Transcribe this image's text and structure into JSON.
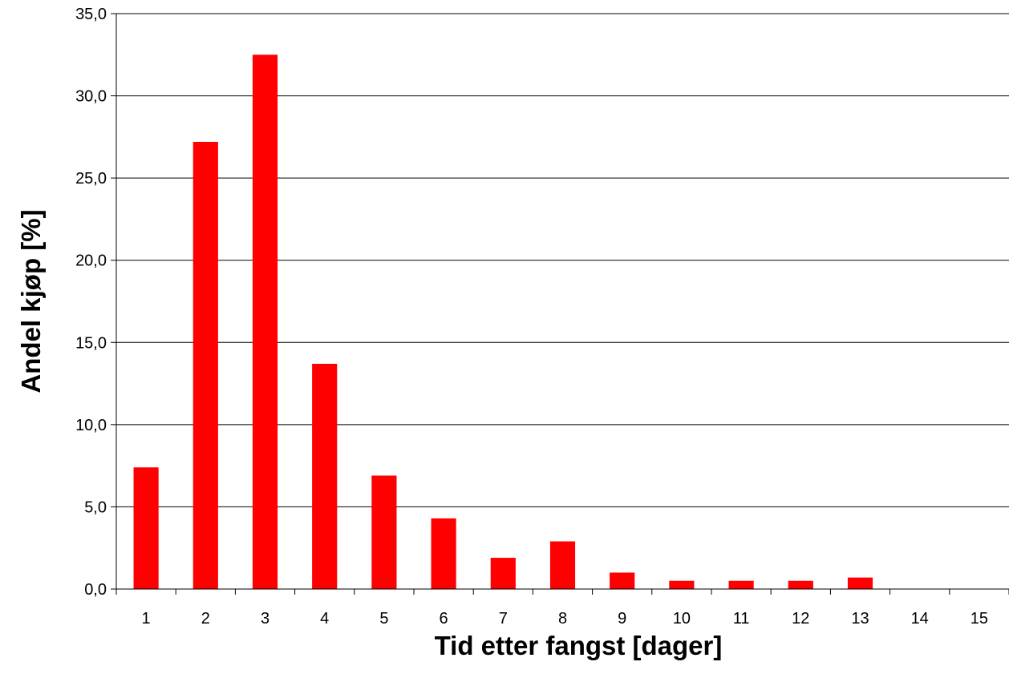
{
  "chart_data": {
    "type": "bar",
    "title": "",
    "xlabel": "Tid etter fangst [dager]",
    "ylabel": "Andel kjøp [%]",
    "categories": [
      "1",
      "2",
      "3",
      "4",
      "5",
      "6",
      "7",
      "8",
      "9",
      "10",
      "11",
      "12",
      "13",
      "14",
      "15"
    ],
    "values": [
      7.4,
      27.2,
      32.5,
      13.7,
      6.9,
      4.3,
      1.9,
      2.9,
      1.0,
      0.5,
      0.5,
      0.5,
      0.7,
      0.0,
      0.0
    ],
    "ylim": [
      0,
      35
    ],
    "yticks": [
      0,
      5,
      10,
      15,
      20,
      25,
      30,
      35
    ],
    "ytick_labels": [
      "0,0",
      "5,0",
      "10,0",
      "15,0",
      "20,0",
      "25,0",
      "30,0",
      "35,0"
    ],
    "grid": "horizontal",
    "legend": "none",
    "bar_color": "#ff0000"
  }
}
